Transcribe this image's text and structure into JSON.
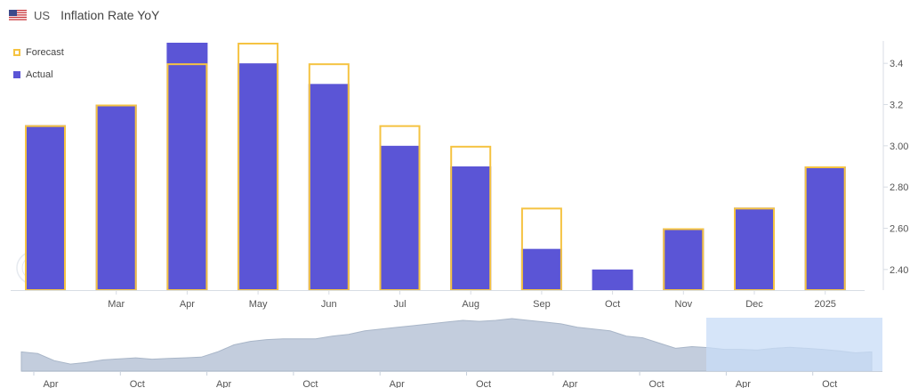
{
  "header": {
    "country": "US",
    "title": "Inflation Rate YoY",
    "flag_icon": "us-flag-icon"
  },
  "legend": {
    "forecast": "Forecast",
    "actual": "Actual"
  },
  "colors": {
    "actual": "#5b55d6",
    "forecast": "#f5c342",
    "navigator_fill": "#c3cddd",
    "navigator_line": "#a9b6c8",
    "navigator_selection": "#c8dcf7"
  },
  "chart_data": {
    "type": "bar",
    "x_labels": [
      "",
      "Mar",
      "Apr",
      "May",
      "Jun",
      "Jul",
      "Aug",
      "Sep",
      "Oct",
      "Nov",
      "Dec",
      "2025"
    ],
    "series": [
      {
        "name": "Actual",
        "values": [
          3.1,
          3.2,
          3.5,
          3.4,
          3.3,
          3.0,
          2.9,
          2.5,
          2.4,
          2.6,
          2.7,
          2.9
        ]
      },
      {
        "name": "Forecast",
        "values": [
          3.1,
          3.2,
          3.4,
          3.5,
          3.4,
          3.1,
          3.0,
          2.7,
          2.3,
          2.6,
          2.7,
          2.9
        ]
      }
    ],
    "ylim": [
      2.3,
      3.5
    ],
    "y_ticks": [
      "2.40",
      "2.60",
      "2.80",
      "3.00",
      "3.2",
      "3.4"
    ],
    "y_tick_values": [
      2.4,
      2.6,
      2.8,
      3.0,
      3.2,
      3.4
    ],
    "navigator": {
      "labels": [
        "Apr",
        "Oct",
        "Apr",
        "Oct",
        "Apr",
        "Oct",
        "Apr",
        "Oct",
        "Apr",
        "Oct"
      ],
      "values": [
        3.35,
        3.3,
        3.1,
        3.0,
        3.05,
        3.12,
        3.15,
        3.18,
        3.14,
        3.16,
        3.18,
        3.2,
        3.35,
        3.55,
        3.65,
        3.7,
        3.72,
        3.72,
        3.72,
        3.8,
        3.85,
        3.95,
        4.0,
        4.05,
        4.1,
        4.15,
        4.2,
        4.25,
        4.22,
        4.25,
        4.3,
        4.25,
        4.2,
        4.15,
        4.05,
        4.0,
        3.95,
        3.8,
        3.75,
        3.6,
        3.45,
        3.5,
        3.47,
        3.42,
        3.42,
        3.4,
        3.45,
        3.48,
        3.45,
        3.42,
        3.38,
        3.32,
        3.35
      ]
    }
  }
}
